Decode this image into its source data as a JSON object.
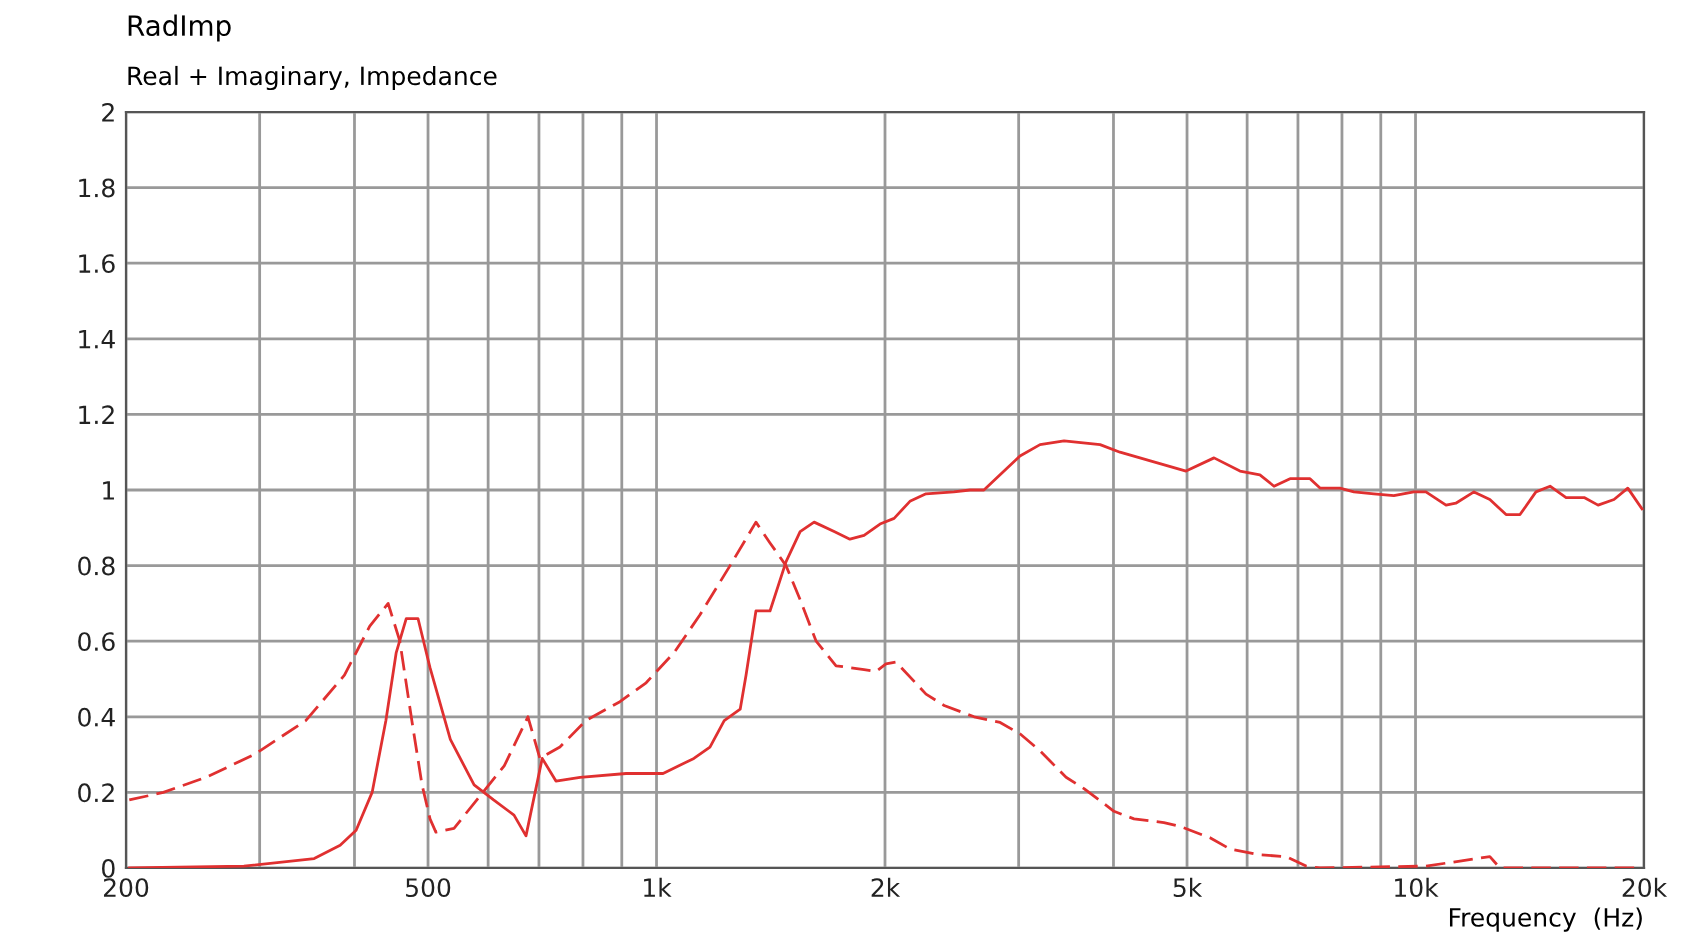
{
  "chart_data": {
    "type": "line",
    "title": "RadImp",
    "subtitle": "Real + Imaginary, Impedance",
    "xlabel": "Frequency  (Hz)",
    "log": "x",
    "grid": true,
    "legend": false,
    "xlim": [
      200,
      20000
    ],
    "ylim": [
      0,
      2
    ],
    "xticks": [
      {
        "value": 200,
        "label": "200"
      },
      {
        "value": 300,
        "label": null
      },
      {
        "value": 400,
        "label": null
      },
      {
        "value": 500,
        "label": "500"
      },
      {
        "value": 600,
        "label": null
      },
      {
        "value": 700,
        "label": null
      },
      {
        "value": 800,
        "label": null
      },
      {
        "value": 900,
        "label": null
      },
      {
        "value": 1000,
        "label": "1k"
      },
      {
        "value": 2000,
        "label": "2k"
      },
      {
        "value": 3000,
        "label": null
      },
      {
        "value": 4000,
        "label": null
      },
      {
        "value": 5000,
        "label": "5k"
      },
      {
        "value": 6000,
        "label": null
      },
      {
        "value": 7000,
        "label": null
      },
      {
        "value": 8000,
        "label": null
      },
      {
        "value": 9000,
        "label": null
      },
      {
        "value": 10000,
        "label": "10k"
      },
      {
        "value": 20000,
        "label": "20k"
      }
    ],
    "yticks": [
      0,
      0.2,
      0.4,
      0.6,
      0.8,
      1,
      1.2,
      1.4,
      1.6,
      1.8,
      2
    ],
    "series": [
      {
        "color": "#e03030",
        "line_style": "solid",
        "x": [
          202,
          286,
          354,
          383,
          402,
          422,
          440,
          454,
          468,
          485,
          503,
          535,
          575,
          610,
          649,
          673,
          707,
          737,
          793,
          912,
          1020,
          1120,
          1176,
          1228,
          1289,
          1312,
          1352,
          1411,
          1481,
          1546,
          1613,
          1714,
          1798,
          1877,
          1970,
          2056,
          2157,
          2265,
          2465,
          2588,
          2700,
          2870,
          3012,
          3201,
          3443,
          3841,
          4080,
          4605,
          4985,
          5427,
          5871,
          6237,
          6510,
          6834,
          7261,
          7484,
          7950,
          8295,
          8812,
          9364,
          9950,
          10320,
          10970,
          11300,
          11940,
          12530,
          13160,
          13730,
          14410,
          15040,
          15790,
          16680,
          17400,
          18260,
          19040,
          19880
        ],
        "values": [
          0,
          0.005,
          0.025,
          0.06,
          0.1,
          0.2,
          0.39,
          0.57,
          0.66,
          0.66,
          0.53,
          0.34,
          0.22,
          0.18,
          0.14,
          0.085,
          0.29,
          0.23,
          0.24,
          0.25,
          0.25,
          0.29,
          0.32,
          0.39,
          0.42,
          0.51,
          0.68,
          0.68,
          0.81,
          0.89,
          0.915,
          0.89,
          0.87,
          0.88,
          0.91,
          0.925,
          0.97,
          0.99,
          0.995,
          1.0,
          1.0,
          1.05,
          1.09,
          1.12,
          1.13,
          1.12,
          1.1,
          1.07,
          1.05,
          1.085,
          1.05,
          1.04,
          1.01,
          1.03,
          1.03,
          1.005,
          1.005,
          0.995,
          0.99,
          0.985,
          0.995,
          0.995,
          0.96,
          0.965,
          0.995,
          0.975,
          0.935,
          0.935,
          0.995,
          1.01,
          0.98,
          0.98,
          0.96,
          0.975,
          1.005,
          0.95
        ]
      },
      {
        "color": "#e03030",
        "line_style": "dashed",
        "x": [
          202,
          224,
          255,
          295,
          345,
          388,
          419,
          443,
          459,
          476,
          491,
          503,
          512,
          541,
          585,
          630,
          677,
          702,
          746,
          807,
          895,
          969,
          1055,
          1141,
          1250,
          1352,
          1411,
          1481,
          1546,
          1623,
          1724,
          1877,
          1946,
          2006,
          2068,
          2265,
          2393,
          2621,
          2836,
          3012,
          3201,
          3464,
          3658,
          4006,
          4257,
          4661,
          4895,
          5361,
          5697,
          6237,
          6752,
          7174,
          7484,
          10320,
          12530,
          12920,
          18260,
          19880
        ],
        "values": [
          0.18,
          0.2,
          0.24,
          0.3,
          0.39,
          0.51,
          0.64,
          0.7,
          0.6,
          0.39,
          0.22,
          0.13,
          0.095,
          0.105,
          0.19,
          0.27,
          0.4,
          0.29,
          0.32,
          0.39,
          0.44,
          0.49,
          0.57,
          0.67,
          0.8,
          0.915,
          0.86,
          0.8,
          0.71,
          0.6,
          0.535,
          0.525,
          0.52,
          0.54,
          0.545,
          0.46,
          0.43,
          0.4,
          0.385,
          0.355,
          0.31,
          0.24,
          0.21,
          0.15,
          0.13,
          0.12,
          0.11,
          0.08,
          0.05,
          0.035,
          0.03,
          0.005,
          0,
          0.005,
          0.03,
          0,
          0,
          0
        ]
      }
    ]
  }
}
